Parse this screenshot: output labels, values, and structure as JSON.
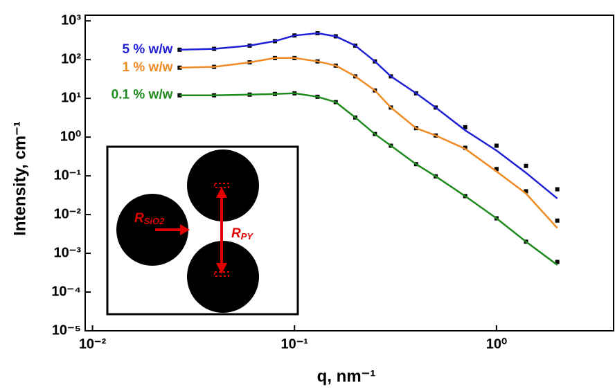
{
  "chart_data": {
    "type": "line",
    "xlabel": "q, nm⁻¹",
    "ylabel": "Intensity, cm⁻¹",
    "log_x": true,
    "log_y": true,
    "xlim": [
      0.0092,
      3.8
    ],
    "ylim": [
      1e-05,
      1400
    ],
    "xticks": [
      {
        "value": 0.01,
        "label": "10⁻²"
      },
      {
        "value": 0.1,
        "label": "10⁻¹"
      },
      {
        "value": 1,
        "label": "10⁰"
      }
    ],
    "yticks": [
      {
        "value": 1e-05,
        "label": "10⁻⁵"
      },
      {
        "value": 0.0001,
        "label": "10⁻⁴"
      },
      {
        "value": 0.001,
        "label": "10⁻³"
      },
      {
        "value": 0.01,
        "label": "10⁻²"
      },
      {
        "value": 0.1,
        "label": "10⁻¹"
      },
      {
        "value": 1,
        "label": "10⁰"
      },
      {
        "value": 10,
        "label": "10¹"
      },
      {
        "value": 100,
        "label": "10²"
      },
      {
        "value": 1000,
        "label": "10³"
      }
    ],
    "data_color": "#000000",
    "x": [
      0.027,
      0.04,
      0.06,
      0.08,
      0.1,
      0.13,
      0.16,
      0.2,
      0.25,
      0.3,
      0.4,
      0.5,
      0.7,
      1.0,
      1.4,
      2.0
    ],
    "series": [
      {
        "name": "5 % w/w",
        "color": "#1f1fd6",
        "values": [
          180,
          190,
          230,
          300,
          420,
          480,
          400,
          230,
          90,
          37,
          13.5,
          5.8,
          1.8,
          0.6,
          0.18,
          0.045
        ],
        "fit": [
          180,
          190,
          230,
          300,
          420,
          480,
          400,
          230,
          90,
          37,
          13.5,
          5.8,
          1.5,
          0.45,
          0.12,
          0.026
        ]
      },
      {
        "name": "1 % w/w",
        "color": "#f08a24",
        "values": [
          62,
          65,
          85,
          110,
          110,
          90,
          70,
          37,
          16,
          5.8,
          1.7,
          1.1,
          0.53,
          0.15,
          0.04,
          0.007
        ],
        "fit": [
          62,
          65,
          85,
          110,
          110,
          90,
          70,
          37,
          16,
          5.8,
          1.7,
          1.1,
          0.5,
          0.13,
          0.035,
          0.0045
        ]
      },
      {
        "name": "0.1 % w/w",
        "color": "#1e8a1e",
        "values": [
          12,
          12,
          12.5,
          13,
          13.5,
          11,
          8,
          3.2,
          1.2,
          0.6,
          0.2,
          0.097,
          0.03,
          0.008,
          0.002,
          0.0006
        ],
        "fit": [
          12,
          12,
          12.5,
          13,
          13.5,
          11,
          8,
          3.2,
          1.2,
          0.6,
          0.2,
          0.097,
          0.03,
          0.008,
          0.002,
          0.0005
        ]
      }
    ],
    "inset_labels": [
      {
        "main": "R",
        "sub": "SiO2"
      },
      {
        "main": "R",
        "sub": "PY"
      }
    ]
  }
}
